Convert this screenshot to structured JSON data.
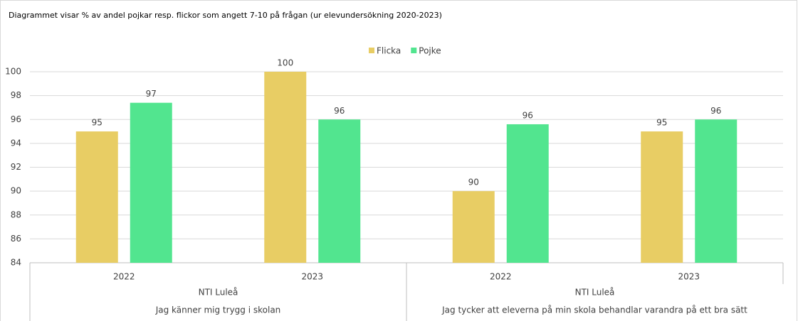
{
  "chart_data": {
    "type": "bar",
    "title": "Diagrammet visar % av andel pojkar resp. flickor som angett 7-10 på frågan (ur elevundersökning 2020-2023)",
    "groups": [
      {
        "question": "Jag känner mig trygg i skolan",
        "school": "NTI Luleå",
        "categories": [
          "2022",
          "2023"
        ]
      },
      {
        "question": "Jag tycker att eleverna på min skola behandlar varandra på ett bra sätt",
        "school": "NTI Luleå",
        "categories": [
          "2022",
          "2023"
        ]
      }
    ],
    "series": [
      {
        "name": "Flicka",
        "color": "#e8cd64",
        "values": [
          95,
          100,
          90,
          95
        ]
      },
      {
        "name": "Pojke",
        "color": "#52e58f",
        "values": [
          97.4,
          96,
          95.6,
          96
        ],
        "value_labels": [
          "97",
          "96",
          "96",
          "96"
        ]
      }
    ],
    "ylim": [
      84,
      100
    ],
    "yticks": [
      84,
      86,
      88,
      90,
      92,
      94,
      96,
      98,
      100
    ],
    "grid": true,
    "legend": "top"
  }
}
